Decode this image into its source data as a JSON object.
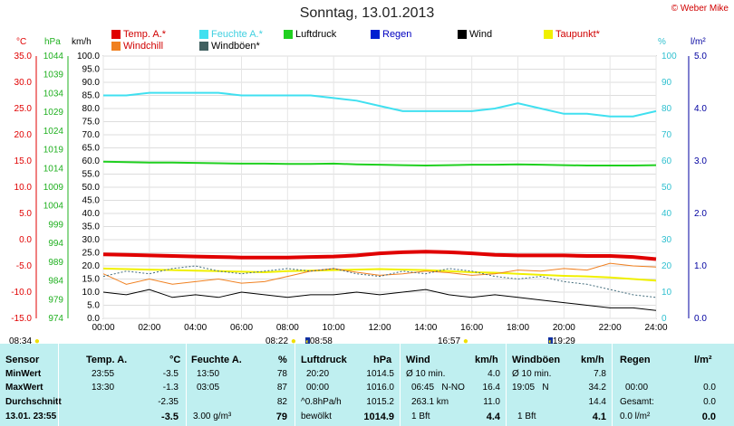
{
  "title": "Sonntag, 13.01.2013",
  "credit": "© Weber Mike",
  "legend": [
    {
      "label": "Temp. A.*",
      "color": "#e00000",
      "text_color": "#d00000"
    },
    {
      "label": "Feuchte A.*",
      "color": "#40e0f0",
      "text_color": "#40d0e0"
    },
    {
      "label": "Luftdruck",
      "color": "#20d020",
      "text_color": "#000000"
    },
    {
      "label": "Regen",
      "color": "#0020d0",
      "text_color": "#0000c0"
    },
    {
      "label": "Wind",
      "color": "#000000",
      "text_color": "#000000"
    },
    {
      "label": "Taupunkt*",
      "color": "#f0f000",
      "text_color": "#d00000"
    },
    {
      "label": "Windchill",
      "color": "#f08020",
      "text_color": "#d00000"
    },
    {
      "label": "Windböen*",
      "color": "#406060",
      "text_color": "#000000"
    }
  ],
  "units": {
    "temp": "°C",
    "pressure": "hPa",
    "wind": "km/h",
    "humidity": "%",
    "rain": "l/m²"
  },
  "chart_data": {
    "type": "line",
    "x_ticks": [
      "00:00",
      "02:00",
      "04:00",
      "06:00",
      "08:00",
      "10:00",
      "12:00",
      "14:00",
      "16:00",
      "18:00",
      "20:00",
      "22:00",
      "24:00"
    ],
    "temp_ticks": [
      "35.0",
      "30.0",
      "25.0",
      "20.0",
      "15.0",
      "10.0",
      "5.0",
      "0.0",
      "-5.0",
      "-10.0",
      "-15.0"
    ],
    "pressure_ticks": [
      "1044",
      "1039",
      "1034",
      "1029",
      "1024",
      "1019",
      "1014",
      "1009",
      "1004",
      "999",
      "994",
      "989",
      "984",
      "979",
      "974"
    ],
    "wind_ticks": [
      "100.0",
      "95.0",
      "90.0",
      "85.0",
      "80.0",
      "75.0",
      "70.0",
      "65.0",
      "60.0",
      "55.0",
      "50.0",
      "45.0",
      "40.0",
      "35.0",
      "30.0",
      "25.0",
      "20.0",
      "15.0",
      "10.0",
      "5.0",
      "0.0"
    ],
    "humidity_ticks": [
      "100",
      "90",
      "80",
      "70",
      "60",
      "50",
      "40",
      "30",
      "20",
      "10",
      "0"
    ],
    "rain_ticks": [
      "5.0",
      "4.0",
      "3.0",
      "2.0",
      "1.0",
      "0.0"
    ],
    "hours": [
      0,
      1,
      2,
      3,
      4,
      5,
      6,
      7,
      8,
      9,
      10,
      11,
      12,
      13,
      14,
      15,
      16,
      17,
      18,
      19,
      20,
      21,
      22,
      23,
      24
    ],
    "series": [
      {
        "name": "Luftdruck",
        "axis": "pressure",
        "color": "#20d020",
        "values": [
          1015.8,
          1015.7,
          1015.6,
          1015.6,
          1015.5,
          1015.4,
          1015.3,
          1015.3,
          1015.2,
          1015.2,
          1015.3,
          1015.1,
          1015.0,
          1014.9,
          1014.8,
          1014.9,
          1015.0,
          1015.0,
          1015.1,
          1015.0,
          1014.9,
          1014.8,
          1014.8,
          1014.8,
          1014.9
        ]
      },
      {
        "name": "Feuchte A.",
        "axis": "humidity",
        "color": "#40e0f0",
        "values": [
          85,
          85,
          86,
          86,
          86,
          86,
          85,
          85,
          85,
          85,
          84,
          83,
          81,
          79,
          79,
          79,
          79,
          80,
          82,
          80,
          78,
          78,
          77,
          77,
          79
        ]
      },
      {
        "name": "Temp. A.",
        "axis": "temp",
        "color": "#e00000",
        "values": [
          -2.8,
          -2.9,
          -3.0,
          -3.1,
          -3.2,
          -3.3,
          -3.4,
          -3.4,
          -3.4,
          -3.3,
          -3.2,
          -3.0,
          -2.6,
          -2.4,
          -2.3,
          -2.4,
          -2.6,
          -2.9,
          -3.0,
          -3.0,
          -3.0,
          -3.1,
          -3.1,
          -3.3,
          -3.7
        ]
      },
      {
        "name": "Taupunkt",
        "axis": "temp",
        "color": "#f0f000",
        "values": [
          -5.5,
          -5.6,
          -5.7,
          -5.8,
          -5.9,
          -6.0,
          -6.1,
          -6.2,
          -6.0,
          -5.9,
          -5.8,
          -5.7,
          -5.6,
          -5.7,
          -5.8,
          -6.0,
          -6.2,
          -6.3,
          -6.5,
          -6.7,
          -6.9,
          -7.0,
          -7.2,
          -7.5,
          -7.8
        ]
      },
      {
        "name": "Windchill",
        "axis": "temp",
        "color": "#f08020",
        "values": [
          -6.5,
          -8.5,
          -7.5,
          -8.5,
          -8.0,
          -7.5,
          -8.3,
          -8.0,
          -7.0,
          -6.0,
          -5.5,
          -6.2,
          -6.8,
          -6.5,
          -6.0,
          -6.3,
          -6.8,
          -6.5,
          -5.8,
          -6.0,
          -5.5,
          -5.8,
          -4.5,
          -5.0,
          -5.2
        ]
      },
      {
        "name": "Windböen",
        "axis": "wind",
        "color": "#406a7a",
        "values": [
          16,
          18,
          17,
          19,
          20,
          18,
          17,
          18,
          19,
          18,
          19,
          17,
          16,
          18,
          17,
          19,
          18,
          16,
          15,
          16,
          14,
          13,
          11,
          9,
          8
        ]
      },
      {
        "name": "Wind",
        "axis": "wind",
        "color": "#000000",
        "values": [
          10,
          9,
          11,
          8,
          9,
          8,
          10,
          9,
          8,
          9,
          9,
          10,
          9,
          10,
          11,
          9,
          8,
          9,
          8,
          7,
          6,
          5,
          4,
          4,
          3
        ]
      }
    ]
  },
  "time_markers": {
    "sunrise": "08:34",
    "sunrise2": "08:22",
    "moonrise": "08:58",
    "sunset": "16:57",
    "moonset": "19:29"
  },
  "table": {
    "row_labels": [
      "Sensor",
      "MinWert",
      "MaxWert",
      "Durchschnitt",
      "13.01. 23:55"
    ],
    "temp": {
      "header": "Temp. A.",
      "unit": "°C",
      "rows": [
        [
          "23:55",
          "-3.5"
        ],
        [
          "13:30",
          "-1.3"
        ],
        [
          "",
          "-2.35"
        ],
        [
          "",
          "-3.5"
        ]
      ]
    },
    "humidity": {
      "header": "Feuchte A.",
      "unit": "%",
      "rows": [
        [
          "13:50",
          "78"
        ],
        [
          "03:05",
          "87"
        ],
        [
          "",
          "82"
        ],
        [
          "3.00 g/m³",
          "79"
        ]
      ]
    },
    "pressure": {
      "header": "Luftdruck",
      "unit": "hPa",
      "rows": [
        [
          "20:20",
          "1014.5"
        ],
        [
          "00:00",
          "1016.0"
        ],
        [
          "^0.8hPa/h",
          "1015.2"
        ],
        [
          "bewölkt",
          "1014.9"
        ]
      ]
    },
    "wind": {
      "header": "Wind",
      "unit": "km/h",
      "rows": [
        [
          "Ø 10 min.",
          "4.0"
        ],
        [
          "06:45   N-NO",
          "16.4"
        ],
        [
          "263.1 km",
          "11.0"
        ],
        [
          "1 Bft",
          "4.4"
        ]
      ]
    },
    "gust": {
      "header": "Windböen",
      "unit": "km/h",
      "rows": [
        [
          "Ø 10 min.",
          "7.8"
        ],
        [
          "19:05   N",
          "34.2"
        ],
        [
          "",
          "14.4"
        ],
        [
          "1 Bft",
          "4.1"
        ]
      ]
    },
    "rain": {
      "header": "Regen",
      "unit": "l/m²",
      "rows": [
        [
          "",
          ""
        ],
        [
          "00:00",
          "0.0"
        ],
        [
          "Gesamt:",
          "0.0"
        ],
        [
          "0.0 l/m²",
          "0.0"
        ]
      ]
    }
  }
}
